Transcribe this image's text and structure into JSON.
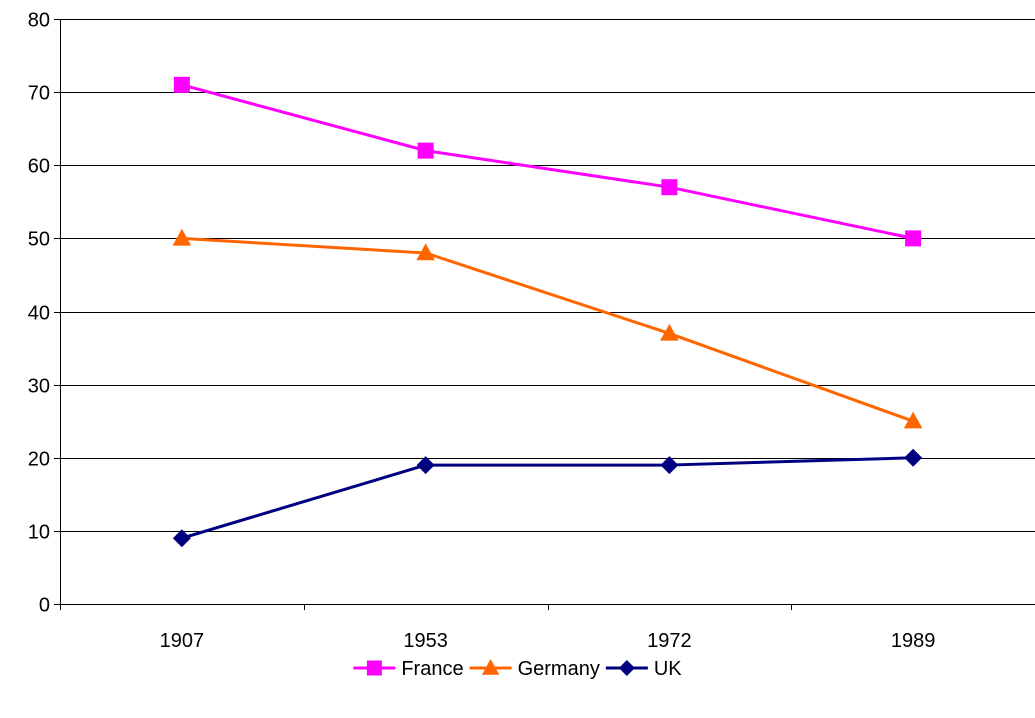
{
  "chart_data": {
    "type": "line",
    "categories": [
      "1907",
      "1953",
      "1972",
      "1989"
    ],
    "ylim": [
      0,
      80
    ],
    "yticks": [
      0,
      10,
      20,
      30,
      40,
      50,
      60,
      70,
      80
    ],
    "grid": true,
    "legend_position": "bottom",
    "series": [
      {
        "name": "France",
        "values": [
          71,
          62,
          57,
          50
        ],
        "color": "#FF00FF",
        "marker": "square"
      },
      {
        "name": "Germany",
        "values": [
          50,
          48,
          37,
          25
        ],
        "color": "#FF6600",
        "marker": "triangle"
      },
      {
        "name": "UK",
        "values": [
          9,
          19,
          19,
          20
        ],
        "color": "#000080",
        "marker": "diamond"
      }
    ]
  }
}
